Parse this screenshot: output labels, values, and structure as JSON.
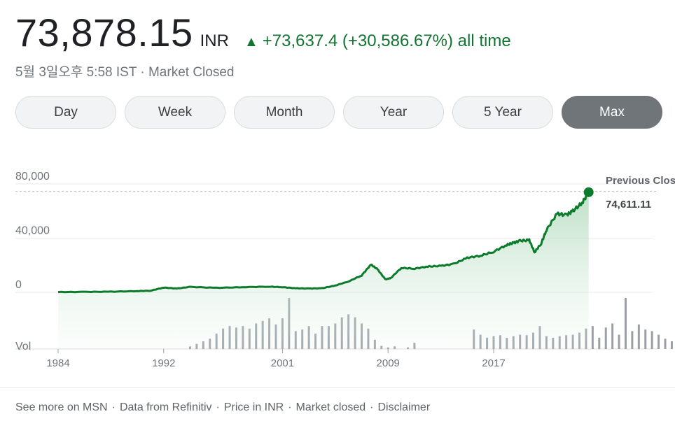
{
  "quote": {
    "price": "73,878.15",
    "currency": "INR",
    "change": "+73,637.4 (+30,586.67%) all time",
    "timestamp": "5월 3일오후 5:58 IST · Market Closed"
  },
  "ranges": [
    "Day",
    "Week",
    "Month",
    "Year",
    "5 Year",
    "Max"
  ],
  "active_range": "Max",
  "colors": {
    "up": "#137333",
    "line": "#0c7c2c",
    "fill": "#ceead6",
    "volume": "#9aa0a6"
  },
  "chart_data": {
    "type": "area",
    "y_ticks": [
      "80,000",
      "40,000",
      "0"
    ],
    "ylim": [
      0,
      80000
    ],
    "x_ticks": [
      "1984",
      "1992",
      "2001",
      "2009",
      "2017"
    ],
    "volume_label": "Vol",
    "previous_close_label": "Previous Close:",
    "previous_close_value": "74,611.11",
    "previous_close": 74611.11,
    "series": [
      {
        "x": [
          1984,
          1986,
          1988,
          1990,
          1991,
          1992,
          1993,
          1994,
          1996,
          1998,
          2000,
          2001,
          2002,
          2003,
          2004,
          2005,
          2006,
          2007,
          2007.7,
          2008.2,
          2008.8,
          2009.2,
          2010,
          2011,
          2012,
          2013,
          2014,
          2015,
          2016,
          2017,
          2018,
          2018.5,
          2019,
          2019.7,
          2020.1,
          2020.6,
          2021,
          2021.8,
          2022.5,
          2023,
          2023.7,
          2024.2
        ],
        "values": [
          200,
          350,
          500,
          900,
          1200,
          3500,
          2800,
          4000,
          3300,
          3800,
          4200,
          3800,
          3000,
          2800,
          3000,
          5000,
          8000,
          12500,
          20500,
          17000,
          9500,
          10500,
          18000,
          17500,
          19000,
          19500,
          21000,
          25500,
          27000,
          30000,
          35000,
          36500,
          38000,
          38500,
          29500,
          36000,
          46000,
          58000,
          57000,
          60000,
          66000,
          73878
        ]
      }
    ],
    "volume": [
      {
        "x": 1994.0,
        "v": 0.05
      },
      {
        "x": 1994.5,
        "v": 0.1
      },
      {
        "x": 1995.0,
        "v": 0.15
      },
      {
        "x": 1995.5,
        "v": 0.2
      },
      {
        "x": 1996.0,
        "v": 0.3
      },
      {
        "x": 1996.5,
        "v": 0.4
      },
      {
        "x": 1997.0,
        "v": 0.45
      },
      {
        "x": 1997.5,
        "v": 0.42
      },
      {
        "x": 1998.0,
        "v": 0.45
      },
      {
        "x": 1998.5,
        "v": 0.4
      },
      {
        "x": 1999.0,
        "v": 0.5
      },
      {
        "x": 1999.5,
        "v": 0.55
      },
      {
        "x": 2000.0,
        "v": 0.6
      },
      {
        "x": 2000.5,
        "v": 0.48
      },
      {
        "x": 2001.0,
        "v": 0.6
      },
      {
        "x": 2001.5,
        "v": 1.0
      },
      {
        "x": 2002.0,
        "v": 0.35
      },
      {
        "x": 2002.5,
        "v": 0.38
      },
      {
        "x": 2003.0,
        "v": 0.45
      },
      {
        "x": 2003.5,
        "v": 0.3
      },
      {
        "x": 2004.0,
        "v": 0.45
      },
      {
        "x": 2004.5,
        "v": 0.45
      },
      {
        "x": 2005.0,
        "v": 0.5
      },
      {
        "x": 2005.5,
        "v": 0.62
      },
      {
        "x": 2006.0,
        "v": 0.68
      },
      {
        "x": 2006.5,
        "v": 0.62
      },
      {
        "x": 2007.0,
        "v": 0.5
      },
      {
        "x": 2007.5,
        "v": 0.4
      },
      {
        "x": 2008.0,
        "v": 0.18
      },
      {
        "x": 2008.5,
        "v": 0.06
      },
      {
        "x": 2009.0,
        "v": 0.03
      },
      {
        "x": 2009.5,
        "v": 0.05
      },
      {
        "x": 2010.5,
        "v": 0.03
      },
      {
        "x": 2011.0,
        "v": 0.12
      },
      {
        "x": 2015.5,
        "v": 0.38
      },
      {
        "x": 2016.0,
        "v": 0.28
      },
      {
        "x": 2016.5,
        "v": 0.22
      },
      {
        "x": 2017.0,
        "v": 0.25
      },
      {
        "x": 2017.5,
        "v": 0.27
      },
      {
        "x": 2018.0,
        "v": 0.22
      },
      {
        "x": 2018.5,
        "v": 0.25
      },
      {
        "x": 2019.0,
        "v": 0.28
      },
      {
        "x": 2019.5,
        "v": 0.27
      },
      {
        "x": 2020.0,
        "v": 0.32
      },
      {
        "x": 2020.5,
        "v": 0.45
      },
      {
        "x": 2021.0,
        "v": 0.25
      },
      {
        "x": 2021.5,
        "v": 0.22
      },
      {
        "x": 2022.0,
        "v": 0.25
      },
      {
        "x": 2022.5,
        "v": 0.27
      },
      {
        "x": 2023.0,
        "v": 0.28
      },
      {
        "x": 2023.5,
        "v": 0.32
      },
      {
        "x": 2024.0,
        "v": 0.4
      },
      {
        "x": 2024.5,
        "v": 0.45
      },
      {
        "x": 2025.0,
        "v": 0.22
      },
      {
        "x": 2025.5,
        "v": 0.42
      },
      {
        "x": 2026.0,
        "v": 0.5
      },
      {
        "x": 2026.5,
        "v": 0.28
      },
      {
        "x": 2027.0,
        "v": 1.0
      },
      {
        "x": 2027.5,
        "v": 0.35
      },
      {
        "x": 2028.0,
        "v": 0.48
      },
      {
        "x": 2028.5,
        "v": 0.38
      },
      {
        "x": 2029.0,
        "v": 0.35
      },
      {
        "x": 2029.5,
        "v": 0.28
      },
      {
        "x": 2030.0,
        "v": 0.2
      },
      {
        "x": 2030.5,
        "v": 0.15
      },
      {
        "x": 2031.0,
        "v": 0.18
      },
      {
        "x": 2031.5,
        "v": 0.25
      },
      {
        "x": 2032.0,
        "v": 0.28
      },
      {
        "x": 2032.5,
        "v": 0.4
      },
      {
        "x": 2033.0,
        "v": 0.3
      },
      {
        "x": 2033.5,
        "v": 0.28
      }
    ]
  },
  "footer": [
    "See more on MSN",
    "Data from Refinitiv",
    "Price in INR",
    "Market closed",
    "Disclaimer"
  ]
}
